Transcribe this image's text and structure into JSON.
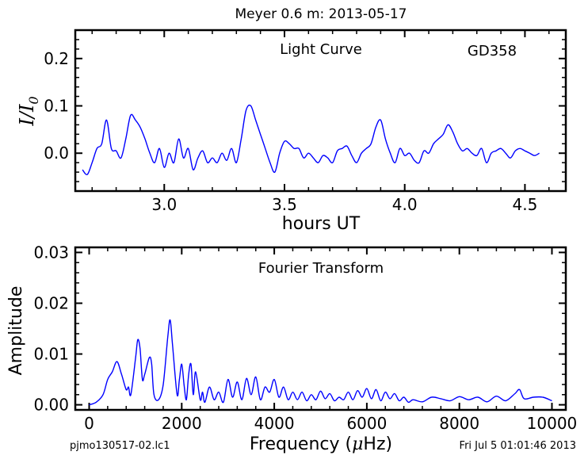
{
  "figure": {
    "title": "Meyer 0.6 m:  2013-05-17",
    "footer_left": "pjmo130517-02.lc1",
    "footer_right": "Fri Jul  5 01:01:46 2013"
  },
  "colors": {
    "line": "#0000ff",
    "axis": "#000000",
    "background": "#ffffff"
  },
  "chart_data": [
    {
      "type": "line",
      "annotation": "Light Curve",
      "star": "GD358",
      "xlabel": "hours UT",
      "ylabel": "I/I0",
      "xlim": [
        2.63,
        4.67
      ],
      "ylim": [
        -0.08,
        0.26
      ],
      "xticks": [
        "3.0",
        "3.5",
        "4.0",
        "4.5"
      ],
      "xtick_values": [
        3.0,
        3.5,
        4.0,
        4.5
      ],
      "yticks": [
        "0.0",
        "0.1",
        "0.2"
      ],
      "ytick_values": [
        0.0,
        0.1,
        0.2
      ],
      "series": [
        {
          "x": [
            2.66,
            2.68,
            2.7,
            2.72,
            2.74,
            2.76,
            2.78,
            2.8,
            2.82,
            2.84,
            2.86,
            2.88,
            2.9,
            2.92,
            2.94,
            2.96,
            2.98,
            3.0,
            3.02,
            3.04,
            3.06,
            3.08,
            3.1,
            3.12,
            3.14,
            3.16,
            3.18,
            3.2,
            3.22,
            3.24,
            3.26,
            3.28,
            3.3,
            3.32,
            3.34,
            3.36,
            3.38,
            3.4,
            3.42,
            3.44,
            3.46,
            3.48,
            3.5,
            3.52,
            3.54,
            3.56,
            3.58,
            3.6,
            3.62,
            3.64,
            3.66,
            3.68,
            3.7,
            3.72,
            3.74,
            3.76,
            3.78,
            3.8,
            3.82,
            3.84,
            3.86,
            3.88,
            3.9,
            3.92,
            3.94,
            3.96,
            3.98,
            4.0,
            4.02,
            4.04,
            4.06,
            4.08,
            4.1,
            4.12,
            4.14,
            4.16,
            4.18,
            4.2,
            4.22,
            4.24,
            4.26,
            4.28,
            4.3,
            4.32,
            4.34,
            4.36,
            4.38,
            4.4,
            4.42,
            4.44,
            4.46,
            4.48,
            4.5,
            4.52,
            4.54,
            4.56
          ],
          "y": [
            -0.035,
            -0.045,
            -0.02,
            0.01,
            0.02,
            0.07,
            0.01,
            0.005,
            -0.01,
            0.03,
            0.08,
            0.07,
            0.055,
            0.03,
            0.0,
            -0.02,
            0.01,
            -0.03,
            0.0,
            -0.02,
            0.03,
            -0.01,
            0.01,
            -0.035,
            -0.01,
            0.005,
            -0.02,
            -0.01,
            -0.02,
            0.0,
            -0.015,
            0.01,
            -0.02,
            0.03,
            0.09,
            0.1,
            0.07,
            0.04,
            0.01,
            -0.02,
            -0.04,
            0.0,
            0.025,
            0.02,
            0.01,
            0.01,
            -0.01,
            0.0,
            -0.01,
            -0.02,
            -0.005,
            -0.01,
            -0.02,
            0.005,
            0.01,
            0.015,
            -0.005,
            -0.02,
            0.0,
            0.01,
            0.02,
            0.055,
            0.07,
            0.03,
            0.0,
            -0.02,
            0.01,
            -0.005,
            0.0,
            -0.015,
            -0.02,
            0.005,
            0.0,
            0.02,
            0.03,
            0.04,
            0.06,
            0.045,
            0.02,
            0.005,
            0.01,
            0.0,
            -0.005,
            0.01,
            -0.02,
            0.0,
            0.005,
            0.01,
            0.0,
            -0.01,
            0.005,
            0.01,
            0.005,
            0.0,
            -0.005,
            0.0
          ]
        }
      ]
    },
    {
      "type": "line",
      "annotation": "Fourier Transform",
      "xlabel": "Frequency (μHz)",
      "ylabel": "Amplitude",
      "xlim": [
        -300,
        10300
      ],
      "ylim": [
        -0.001,
        0.031
      ],
      "xticks": [
        "0",
        "2000",
        "4000",
        "6000",
        "8000",
        "10000"
      ],
      "xtick_values": [
        0,
        2000,
        4000,
        6000,
        8000,
        10000
      ],
      "yticks": [
        "0.00",
        "0.01",
        "0.02",
        "0.03"
      ],
      "ytick_values": [
        0.0,
        0.01,
        0.02,
        0.03
      ],
      "series": [
        {
          "x": [
            0,
            150,
            300,
            400,
            500,
            600,
            700,
            800,
            850,
            900,
            1000,
            1050,
            1100,
            1150,
            1200,
            1300,
            1350,
            1400,
            1500,
            1600,
            1700,
            1750,
            1800,
            1900,
            1950,
            2000,
            2050,
            2100,
            2150,
            2200,
            2250,
            2300,
            2400,
            2450,
            2500,
            2600,
            2700,
            2800,
            2900,
            3000,
            3100,
            3200,
            3300,
            3400,
            3500,
            3600,
            3700,
            3800,
            3900,
            4000,
            4100,
            4200,
            4300,
            4400,
            4500,
            4600,
            4700,
            4800,
            4900,
            5000,
            5100,
            5200,
            5300,
            5400,
            5500,
            5600,
            5700,
            5800,
            5900,
            6000,
            6100,
            6200,
            6300,
            6400,
            6500,
            6600,
            6700,
            6800,
            6900,
            7000,
            7200,
            7400,
            7600,
            7800,
            8000,
            8200,
            8400,
            8600,
            8800,
            9000,
            9200,
            9300,
            9400,
            9600,
            9800,
            10000
          ],
          "y": [
            0.0,
            0.0005,
            0.002,
            0.005,
            0.0065,
            0.0085,
            0.006,
            0.003,
            0.0035,
            0.002,
            0.009,
            0.0128,
            0.011,
            0.005,
            0.006,
            0.0093,
            0.008,
            0.002,
            0.001,
            0.004,
            0.0135,
            0.0167,
            0.012,
            0.002,
            0.005,
            0.008,
            0.004,
            0.001,
            0.006,
            0.008,
            0.002,
            0.0065,
            0.001,
            0.0025,
            0.0005,
            0.0035,
            0.001,
            0.0025,
            0.0005,
            0.005,
            0.0015,
            0.0045,
            0.001,
            0.0052,
            0.002,
            0.0055,
            0.001,
            0.0035,
            0.0025,
            0.005,
            0.0015,
            0.0035,
            0.001,
            0.0025,
            0.001,
            0.0025,
            0.0008,
            0.002,
            0.001,
            0.0027,
            0.0012,
            0.0022,
            0.0008,
            0.0015,
            0.001,
            0.0025,
            0.001,
            0.0028,
            0.0015,
            0.0032,
            0.0012,
            0.003,
            0.0008,
            0.0025,
            0.0012,
            0.0022,
            0.0008,
            0.0015,
            0.0005,
            0.001,
            0.0006,
            0.0015,
            0.0012,
            0.0008,
            0.0016,
            0.001,
            0.0015,
            0.0006,
            0.0017,
            0.0008,
            0.0022,
            0.003,
            0.0012,
            0.0015,
            0.0015,
            0.0008
          ]
        }
      ]
    }
  ]
}
